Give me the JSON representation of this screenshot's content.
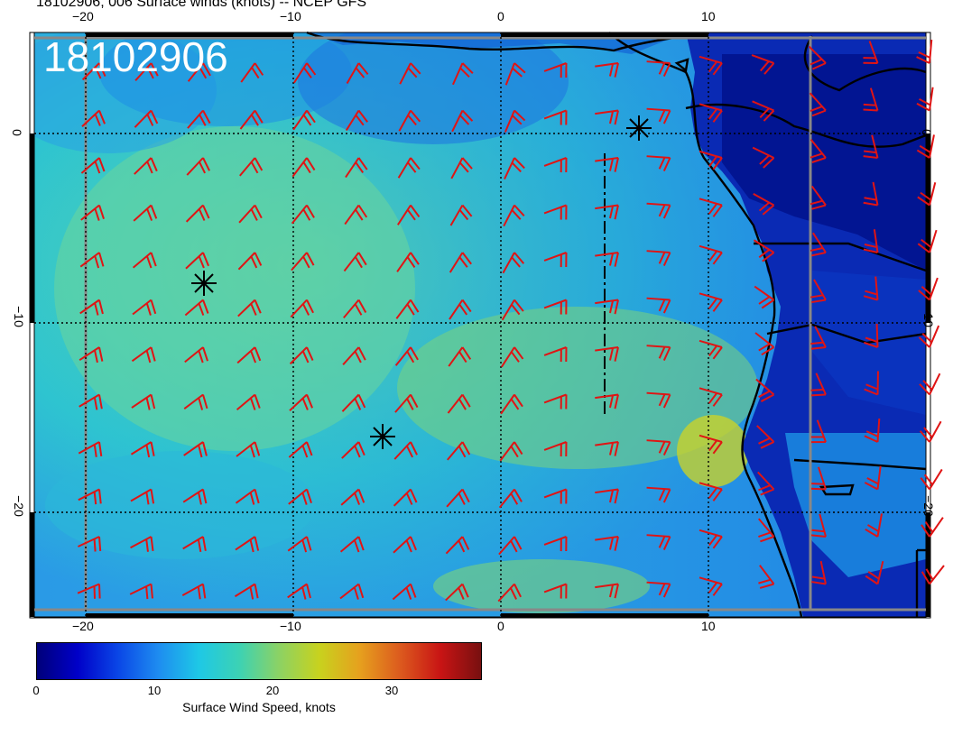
{
  "title": "18102906, 006 Surface winds (knots) -- NCEP GFS",
  "stamp": "18102906",
  "axes": {
    "lon_ticks": [
      "−20",
      "−10",
      "0",
      "10"
    ],
    "lat_ticks": [
      "0",
      "−10",
      "−20"
    ]
  },
  "colorbar": {
    "label": "Surface Wind Speed, knots",
    "ticks": [
      "0",
      "10",
      "20",
      "30"
    ],
    "colors": [
      "#00007a",
      "#0000c8",
      "#0a46e6",
      "#1e8cf0",
      "#1ec8e6",
      "#3cd2b4",
      "#8cd264",
      "#c8d21e",
      "#e6a01e",
      "#dc5a1e",
      "#c81414",
      "#781010"
    ]
  },
  "wind_barb_color": "#e01414",
  "grid_color": "#000000",
  "coastline_color": "#000000"
}
